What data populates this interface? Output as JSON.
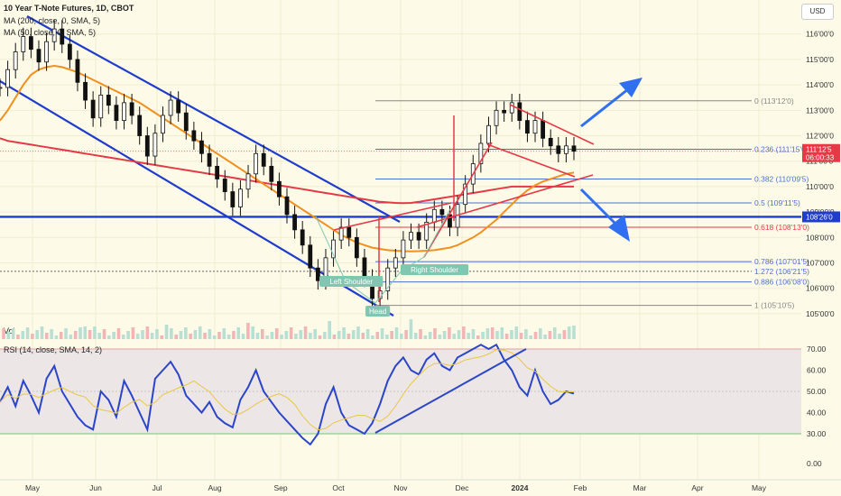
{
  "header": {
    "symbol_line": "10 Year T-Note Futures, 1D, CBOT",
    "ma200_line": "MA (200, close, 0, SMA, 5)",
    "ma50_line": "MA (50, close, 0, SMA, 5)",
    "currency": "USD"
  },
  "colors": {
    "background": "#fdfbe8",
    "price": "#111111",
    "ma200": "#e53945",
    "ma50": "#f0901e",
    "channel": "#1f3ccc",
    "rsi": "#2b45c8",
    "fib": "#4a6fd6",
    "arrow": "#2f6ff0",
    "badge": "#7fc7b0"
  },
  "chart_data": {
    "type": "line",
    "x_ticks": [
      "May",
      "Jun",
      "Jul",
      "Aug",
      "Sep",
      "Oct",
      "Nov",
      "Dec",
      "2024",
      "Feb",
      "Mar",
      "Apr",
      "May"
    ],
    "y_ticks": [
      "116'00'0",
      "115'00'0",
      "114'00'0",
      "113'00'0",
      "112'00'0",
      "111'00'0",
      "110'00'0",
      "109'00'0",
      "108'00'0",
      "107'00'0",
      "106'00'0",
      "105'00'0"
    ],
    "ylim": [
      104.5,
      116.7
    ],
    "price_series": [
      113.9,
      114.6,
      115.3,
      115.9,
      115.4,
      114.9,
      115.7,
      116.2,
      115.6,
      115.0,
      114.1,
      113.4,
      112.7,
      113.6,
      113.2,
      112.6,
      113.3,
      112.8,
      112.0,
      111.2,
      112.1,
      112.8,
      113.4,
      112.9,
      112.2,
      111.8,
      111.3,
      110.8,
      110.3,
      109.8,
      109.2,
      109.9,
      110.5,
      111.3,
      110.8,
      110.2,
      109.6,
      108.9,
      108.3,
      107.7,
      106.8,
      106.3,
      107.2,
      107.9,
      108.4,
      108.0,
      107.2,
      106.4,
      105.6,
      105.9,
      106.8,
      107.2,
      107.9,
      108.2,
      107.9,
      108.6,
      109.1,
      108.9,
      108.4,
      109.3,
      110.1,
      110.9,
      111.7,
      112.4,
      113.0,
      112.9,
      113.3,
      112.6,
      112.1,
      112.6,
      111.9,
      111.6,
      111.3,
      111.6,
      111.39
    ],
    "ma200_series": [
      111.9,
      111.8,
      111.75,
      111.7,
      111.65,
      111.6,
      111.55,
      111.5,
      111.45,
      111.4,
      111.35,
      111.3,
      111.25,
      111.2,
      111.15,
      111.1,
      111.05,
      111.0,
      110.95,
      110.9,
      110.85,
      110.8,
      110.75,
      110.7,
      110.65,
      110.6,
      110.55,
      110.5,
      110.45,
      110.4,
      110.35,
      110.3,
      110.25,
      110.2,
      110.15,
      110.1,
      110.05,
      110.0,
      109.95,
      109.9,
      109.85,
      109.8,
      109.75,
      109.7,
      109.65,
      109.6,
      109.55,
      109.5,
      109.45,
      109.4,
      109.38,
      109.36,
      109.35,
      109.36,
      109.4,
      109.45,
      109.5,
      109.55,
      109.6,
      109.65,
      109.7,
      109.75,
      109.8,
      109.85,
      109.9,
      109.95,
      110.0,
      110.0,
      110.0,
      110.0,
      110.0,
      110.0,
      110.0,
      110.0,
      110.0
    ],
    "ma50_series": [
      112.6,
      113.0,
      113.5,
      114.0,
      114.4,
      114.6,
      114.7,
      114.75,
      114.7,
      114.6,
      114.5,
      114.35,
      114.2,
      114.05,
      113.9,
      113.75,
      113.6,
      113.45,
      113.3,
      113.1,
      112.9,
      112.7,
      112.5,
      112.3,
      112.1,
      111.9,
      111.7,
      111.5,
      111.3,
      111.1,
      110.9,
      110.7,
      110.5,
      110.3,
      110.1,
      109.9,
      109.7,
      109.5,
      109.3,
      109.1,
      108.9,
      108.7,
      108.5,
      108.3,
      108.1,
      107.95,
      107.8,
      107.7,
      107.6,
      107.55,
      107.5,
      107.48,
      107.46,
      107.45,
      107.46,
      107.48,
      107.5,
      107.55,
      107.6,
      107.7,
      107.85,
      108.0,
      108.2,
      108.45,
      108.7,
      109.0,
      109.3,
      109.6,
      109.85,
      110.05,
      110.2,
      110.3,
      110.4,
      110.5,
      110.55
    ],
    "fib_levels": [
      {
        "label": "0 (113'12'0)",
        "value": 113.375
      },
      {
        "label": "0.236 (111'15'0)",
        "value": 111.47
      },
      {
        "label": "0.382 (110'09'5)",
        "value": 110.3
      },
      {
        "label": "0.5 (109'11'5)",
        "value": 109.36
      },
      {
        "label": "0.618 (108'13'0)",
        "value": 108.4
      },
      {
        "label": "0.786 (107'01'5)",
        "value": 107.05
      },
      {
        "label": "1.272 (106'21'5)",
        "value": 106.67
      },
      {
        "label": "0.886 (106'08'0)",
        "value": 106.25
      },
      {
        "label": "1 (105'10'5)",
        "value": 105.33
      }
    ],
    "horizontal_support": {
      "label": "108'26'0",
      "value": 108.81
    },
    "last_price": {
      "label": "111'12'5",
      "countdown": "06:00:33",
      "value": 111.39
    },
    "annotations": [
      "Left Shoulder",
      "Head",
      "Right Shoulder"
    ],
    "volume_label": "Vol",
    "rsi": {
      "label": "RSI (14, close, SMA, 14, 2)",
      "upper_band": 70,
      "lower_band": 30,
      "y_ticks": [
        "70.00",
        "60.00",
        "50.00",
        "40.00",
        "30.00",
        "0.00"
      ],
      "series": [
        45,
        52,
        43,
        55,
        48,
        40,
        56,
        62,
        50,
        44,
        38,
        34,
        32,
        50,
        46,
        38,
        55,
        48,
        40,
        32,
        56,
        60,
        64,
        58,
        48,
        44,
        40,
        45,
        38,
        35,
        33,
        46,
        52,
        60,
        50,
        45,
        40,
        36,
        32,
        28,
        25,
        30,
        44,
        52,
        40,
        34,
        32,
        30,
        35,
        44,
        55,
        62,
        66,
        60,
        58,
        65,
        68,
        62,
        60,
        66,
        68,
        70,
        72,
        70,
        72,
        65,
        60,
        52,
        48,
        60,
        50,
        44,
        46,
        50,
        49
      ]
    }
  }
}
